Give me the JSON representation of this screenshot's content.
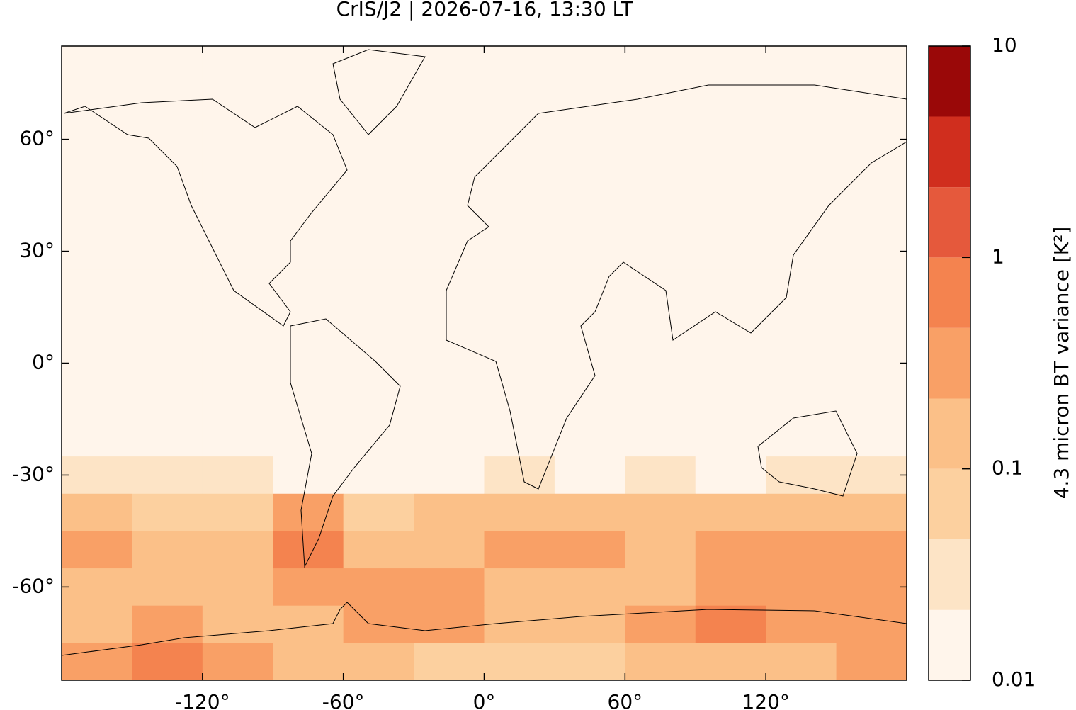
{
  "chart_data": {
    "type": "map",
    "title": "CrIS/J2 | 2026-07-16, 13:30 LT",
    "xlim": [
      -180,
      180
    ],
    "ylim": [
      -85,
      85
    ],
    "xticks": [
      {
        "value": -120,
        "label": "-120°"
      },
      {
        "value": -60,
        "label": "-60°"
      },
      {
        "value": 0,
        "label": "0°"
      },
      {
        "value": 60,
        "label": "60°"
      },
      {
        "value": 120,
        "label": "120°"
      }
    ],
    "yticks": [
      {
        "value": 60,
        "label": "60°"
      },
      {
        "value": 30,
        "label": "30°"
      },
      {
        "value": 0,
        "label": "0°"
      },
      {
        "value": -30,
        "label": "-30°"
      },
      {
        "value": -60,
        "label": "-60°"
      }
    ],
    "lon": [
      -165,
      -135,
      -105,
      -75,
      -45,
      -15,
      15,
      45,
      75,
      105,
      135,
      165
    ],
    "lat": [
      80,
      70,
      60,
      50,
      40,
      30,
      20,
      10,
      0,
      -10,
      -20,
      -30,
      -40,
      -50,
      -60,
      -70,
      -80
    ],
    "values": [
      [
        0.012,
        0.012,
        0.012,
        0.012,
        0.012,
        0.012,
        0.012,
        0.012,
        0.012,
        0.012,
        0.012,
        0.012
      ],
      [
        0.012,
        0.012,
        0.012,
        0.012,
        0.012,
        0.012,
        0.012,
        0.012,
        0.012,
        0.012,
        0.012,
        0.012
      ],
      [
        0.012,
        0.012,
        0.012,
        0.012,
        0.012,
        0.012,
        0.012,
        0.012,
        0.012,
        0.012,
        0.012,
        0.012
      ],
      [
        0.012,
        0.012,
        0.012,
        0.012,
        0.012,
        0.012,
        0.012,
        0.012,
        0.012,
        0.012,
        0.012,
        0.012
      ],
      [
        0.012,
        0.012,
        0.012,
        0.012,
        0.012,
        0.012,
        0.012,
        0.012,
        0.012,
        0.012,
        0.012,
        0.012
      ],
      [
        0.012,
        0.012,
        0.012,
        0.012,
        0.012,
        0.012,
        0.012,
        0.012,
        0.012,
        0.012,
        0.012,
        0.012
      ],
      [
        0.012,
        0.012,
        0.012,
        0.012,
        0.012,
        0.012,
        0.012,
        0.012,
        0.012,
        0.012,
        0.012,
        0.012
      ],
      [
        0.012,
        0.012,
        0.012,
        0.012,
        0.012,
        0.012,
        0.012,
        0.012,
        0.012,
        0.012,
        0.012,
        0.012
      ],
      [
        0.012,
        0.012,
        0.012,
        0.012,
        0.012,
        0.012,
        0.012,
        0.012,
        0.012,
        0.012,
        0.012,
        0.012
      ],
      [
        0.012,
        0.012,
        0.012,
        0.012,
        0.012,
        0.012,
        0.012,
        0.012,
        0.012,
        0.012,
        0.012,
        0.012
      ],
      [
        0.012,
        0.012,
        0.012,
        0.012,
        0.012,
        0.012,
        0.012,
        0.012,
        0.012,
        0.012,
        0.012,
        0.012
      ],
      [
        0.03,
        0.025,
        0.03,
        0.02,
        0.015,
        0.02,
        0.03,
        0.02,
        0.03,
        0.02,
        0.03,
        0.04
      ],
      [
        0.12,
        0.08,
        0.06,
        0.3,
        0.08,
        0.15,
        0.2,
        0.12,
        0.15,
        0.18,
        0.1,
        0.15
      ],
      [
        0.25,
        0.15,
        0.1,
        0.5,
        0.15,
        0.2,
        0.3,
        0.35,
        0.2,
        0.3,
        0.4,
        0.3
      ],
      [
        0.2,
        0.12,
        0.15,
        0.25,
        0.3,
        0.25,
        0.2,
        0.15,
        0.2,
        0.25,
        0.3,
        0.35
      ],
      [
        0.2,
        0.3,
        0.15,
        0.2,
        0.25,
        0.3,
        0.15,
        0.2,
        0.3,
        0.5,
        0.4,
        0.3
      ],
      [
        0.3,
        0.8,
        0.3,
        0.15,
        0.1,
        0.08,
        0.06,
        0.08,
        0.12,
        0.15,
        0.2,
        0.3
      ]
    ],
    "colorbar": {
      "label": "4.3 micron BT variance [K²]",
      "log_scale": true,
      "levels": [
        0.01,
        0.0215,
        0.0464,
        0.1,
        0.215,
        0.464,
        1,
        2.15,
        4.64,
        10
      ],
      "colors": [
        "#fff5eb",
        "#fde4c6",
        "#fcd09f",
        "#fbc088",
        "#f9a066",
        "#f4834f",
        "#e5593c",
        "#d02e1e",
        "#9a0808"
      ],
      "ticks": [
        0.01,
        0.1,
        1,
        10
      ]
    }
  }
}
